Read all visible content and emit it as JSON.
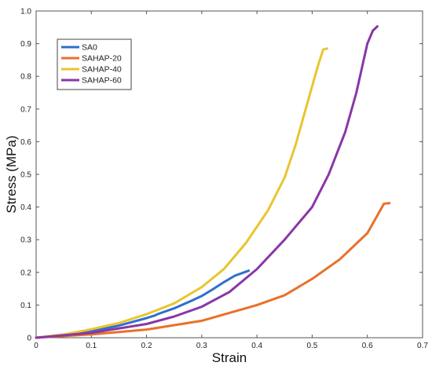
{
  "chart_data": {
    "type": "line",
    "title": "",
    "xlabel": "Strain",
    "ylabel": "Stress (MPa)",
    "xlim": [
      0,
      0.7
    ],
    "ylim": [
      0,
      1.0
    ],
    "xticks": [
      0,
      0.1,
      0.2,
      0.3,
      0.4,
      0.5,
      0.6,
      0.7
    ],
    "xtick_labels": [
      "0",
      "0.1",
      "0.2",
      "0.3",
      "0.4",
      "0.5",
      "0.6",
      "0.7"
    ],
    "yticks": [
      0,
      0.1,
      0.2,
      0.3,
      0.4,
      0.5,
      0.6,
      0.7,
      0.8,
      0.9,
      1.0
    ],
    "ytick_labels": [
      "0",
      "0.1",
      "0.2",
      "0.3",
      "0.4",
      "0.5",
      "0.6",
      "0.7",
      "0.8",
      "0.9",
      "1.0"
    ],
    "grid": false,
    "legend_position": "top-left",
    "series": [
      {
        "name": "SA0",
        "color": "#2e6fce",
        "points": [
          [
            0,
            0.0
          ],
          [
            0.05,
            0.008
          ],
          [
            0.1,
            0.02
          ],
          [
            0.15,
            0.037
          ],
          [
            0.2,
            0.06
          ],
          [
            0.215,
            0.068
          ],
          [
            0.22,
            0.072
          ],
          [
            0.25,
            0.09
          ],
          [
            0.28,
            0.112
          ],
          [
            0.3,
            0.128
          ],
          [
            0.32,
            0.148
          ],
          [
            0.34,
            0.17
          ],
          [
            0.36,
            0.19
          ],
          [
            0.385,
            0.205
          ]
        ]
      },
      {
        "name": "SAHAP-20",
        "color": "#e8712a",
        "points": [
          [
            0,
            0.0
          ],
          [
            0.1,
            0.01
          ],
          [
            0.2,
            0.025
          ],
          [
            0.3,
            0.052
          ],
          [
            0.4,
            0.1
          ],
          [
            0.45,
            0.13
          ],
          [
            0.5,
            0.18
          ],
          [
            0.55,
            0.24
          ],
          [
            0.6,
            0.32
          ],
          [
            0.62,
            0.38
          ],
          [
            0.63,
            0.41
          ],
          [
            0.64,
            0.412
          ]
        ]
      },
      {
        "name": "SAHAP-40",
        "color": "#e9c52e",
        "points": [
          [
            0,
            0.0
          ],
          [
            0.05,
            0.01
          ],
          [
            0.1,
            0.026
          ],
          [
            0.15,
            0.045
          ],
          [
            0.2,
            0.072
          ],
          [
            0.25,
            0.105
          ],
          [
            0.3,
            0.155
          ],
          [
            0.34,
            0.21
          ],
          [
            0.38,
            0.29
          ],
          [
            0.42,
            0.39
          ],
          [
            0.45,
            0.49
          ],
          [
            0.47,
            0.59
          ],
          [
            0.49,
            0.71
          ],
          [
            0.51,
            0.83
          ],
          [
            0.52,
            0.882
          ],
          [
            0.527,
            0.885
          ]
        ]
      },
      {
        "name": "SAHAP-60",
        "color": "#8a36a8",
        "points": [
          [
            0,
            0.0
          ],
          [
            0.1,
            0.015
          ],
          [
            0.2,
            0.042
          ],
          [
            0.25,
            0.065
          ],
          [
            0.3,
            0.095
          ],
          [
            0.35,
            0.14
          ],
          [
            0.4,
            0.21
          ],
          [
            0.45,
            0.3
          ],
          [
            0.5,
            0.4
          ],
          [
            0.53,
            0.5
          ],
          [
            0.56,
            0.63
          ],
          [
            0.58,
            0.75
          ],
          [
            0.6,
            0.9
          ],
          [
            0.61,
            0.94
          ],
          [
            0.618,
            0.953
          ]
        ]
      }
    ]
  }
}
